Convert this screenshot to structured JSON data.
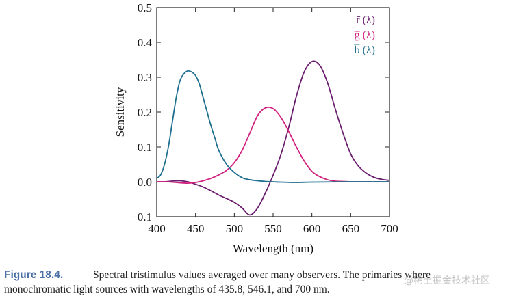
{
  "chart_data": {
    "type": "line",
    "xlabel": "Wavelength (nm)",
    "ylabel": "Sensitivity",
    "xlim": [
      400,
      700
    ],
    "ylim": [
      -0.1,
      0.5
    ],
    "xticks": [
      "400",
      "450",
      "500",
      "550",
      "600",
      "650",
      "700"
    ],
    "yticks": [
      "−0.1",
      "0.0",
      "0.1",
      "0.2",
      "0.3",
      "0.4",
      "0.5"
    ],
    "grid": false,
    "legend_position": "top-right",
    "series": [
      {
        "name": "r̄ (λ)",
        "color": "#6a1d6e",
        "x": [
          400,
          410,
          420,
          430,
          440,
          450,
          460,
          470,
          480,
          490,
          500,
          510,
          520,
          530,
          540,
          550,
          560,
          570,
          580,
          590,
          600,
          610,
          620,
          630,
          640,
          650,
          660,
          670,
          680,
          690,
          700
        ],
        "y": [
          0.0,
          0.0,
          0.002,
          0.003,
          0.0,
          -0.007,
          -0.015,
          -0.026,
          -0.038,
          -0.048,
          -0.059,
          -0.075,
          -0.095,
          -0.075,
          -0.032,
          0.019,
          0.078,
          0.155,
          0.245,
          0.315,
          0.345,
          0.335,
          0.285,
          0.21,
          0.14,
          0.08,
          0.045,
          0.025,
          0.013,
          0.007,
          0.004
        ]
      },
      {
        "name": "g̅ (λ)",
        "color": "#d11f7e",
        "x": [
          400,
          410,
          420,
          430,
          440,
          450,
          460,
          470,
          480,
          490,
          500,
          510,
          520,
          530,
          540,
          550,
          560,
          570,
          580,
          590,
          600,
          610,
          620,
          630,
          640,
          650,
          660,
          670,
          680,
          690,
          700
        ],
        "y": [
          0.0,
          0.0,
          -0.001,
          -0.003,
          -0.004,
          -0.002,
          0.003,
          0.01,
          0.02,
          0.033,
          0.055,
          0.09,
          0.14,
          0.19,
          0.212,
          0.21,
          0.185,
          0.145,
          0.1,
          0.06,
          0.03,
          0.015,
          0.006,
          0.002,
          0.001,
          0.0,
          0.0,
          0.0,
          0.0,
          0.0,
          0.0
        ]
      },
      {
        "name": "b̅ (λ)",
        "color": "#1f6f8f",
        "x": [
          400,
          405,
          410,
          415,
          420,
          425,
          430,
          435,
          440,
          445,
          450,
          455,
          460,
          465,
          470,
          475,
          480,
          490,
          500,
          510,
          520,
          530,
          540,
          550,
          560,
          580,
          600,
          650,
          700
        ],
        "y": [
          0.01,
          0.02,
          0.05,
          0.1,
          0.17,
          0.24,
          0.29,
          0.31,
          0.318,
          0.315,
          0.305,
          0.28,
          0.24,
          0.2,
          0.16,
          0.125,
          0.09,
          0.05,
          0.027,
          0.012,
          0.006,
          0.003,
          0.001,
          0.0,
          -0.001,
          -0.002,
          -0.001,
          0.0,
          0.0
        ]
      }
    ]
  },
  "caption": {
    "label": "Figure 18.4.",
    "line1": "Spectral tristimulus values averaged over many observers.  The primaries where",
    "line2": "monochromatic light sources with wavelengths of 435.8, 546.1, and 700 nm."
  },
  "watermark": "@稀土掘金技术社区"
}
